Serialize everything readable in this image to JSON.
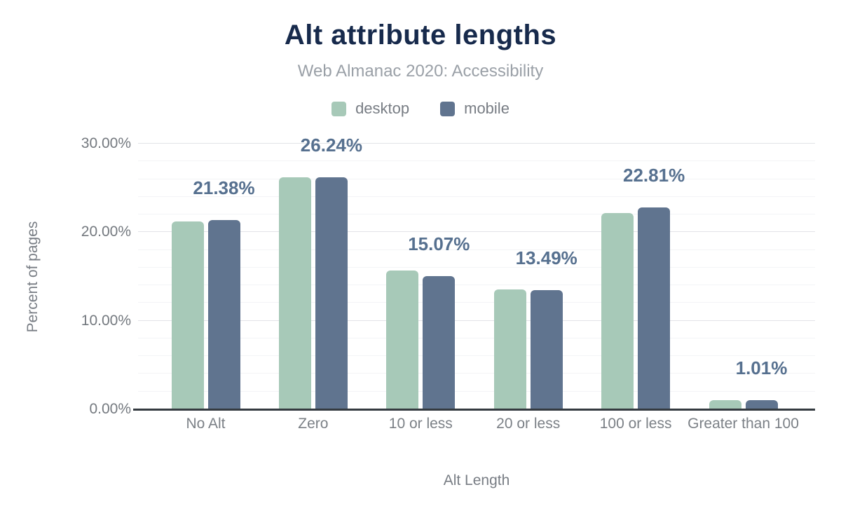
{
  "chart_data": {
    "type": "bar",
    "title": "Alt attribute lengths",
    "subtitle": "Web Almanac 2020: Accessibility",
    "xlabel": "Alt Length",
    "ylabel": "Percent of pages",
    "ylim": [
      0,
      30
    ],
    "y_ticks": [
      {
        "value": 0,
        "label": "0.00%"
      },
      {
        "value": 10,
        "label": "10.00%"
      },
      {
        "value": 20,
        "label": "20.00%"
      },
      {
        "value": 30,
        "label": "30.00%"
      }
    ],
    "grid": "horizontal; faint minor lines every 2%, major lines every 10%",
    "legend_position": "top-center",
    "categories": [
      "No Alt",
      "Zero",
      "10 or less",
      "20 or less",
      "100 or less",
      "Greater than 100"
    ],
    "series": [
      {
        "name": "desktop",
        "color": "#a7c9b8",
        "values": [
          21.2,
          26.2,
          15.7,
          13.55,
          22.2,
          1.0
        ]
      },
      {
        "name": "mobile",
        "color": "#60748f",
        "values": [
          21.38,
          26.24,
          15.07,
          13.49,
          22.81,
          1.01
        ]
      }
    ],
    "data_labels": [
      "21.38%",
      "26.24%",
      "15.07%",
      "13.49%",
      "22.81%",
      "1.01%"
    ],
    "colors": {
      "title": "#172a4c",
      "subtitle": "#9aa0a7",
      "axis_text": "#74797f",
      "category_text": "#7b8086",
      "data_label_text": "#56708f",
      "gridline_minor": "#f3f4f6",
      "gridline_major": "#e2e3e7",
      "axis_line": "#343a40",
      "background": "#ffffff"
    }
  }
}
